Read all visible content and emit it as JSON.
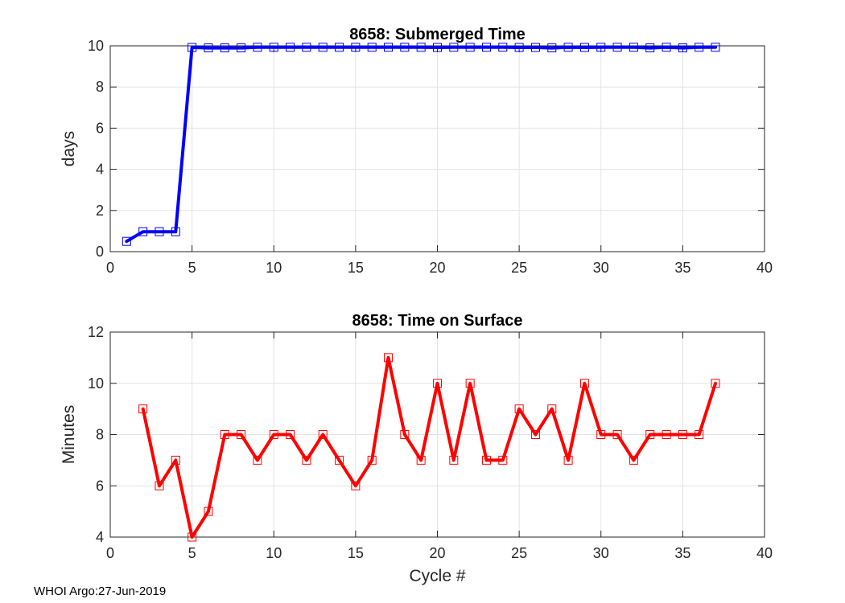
{
  "footer": "WHOI Argo:27-Jun-2019",
  "chart_data": [
    {
      "type": "line",
      "title": "8658: Submerged Time",
      "xlabel": "",
      "ylabel": "days",
      "xlim": [
        0,
        40
      ],
      "ylim": [
        0,
        10
      ],
      "xticks": [
        0,
        5,
        10,
        15,
        20,
        25,
        30,
        35,
        40
      ],
      "yticks": [
        0,
        2,
        4,
        6,
        8,
        10
      ],
      "grid": true,
      "line_color": "#0000ff",
      "marker": "square",
      "x": [
        1,
        2,
        3,
        4,
        5,
        6,
        7,
        8,
        9,
        10,
        11,
        12,
        13,
        14,
        15,
        16,
        17,
        18,
        19,
        20,
        21,
        22,
        23,
        24,
        25,
        26,
        27,
        28,
        29,
        30,
        31,
        32,
        33,
        34,
        35,
        36,
        37
      ],
      "y": [
        0.5,
        0.97,
        0.97,
        0.97,
        9.92,
        9.9,
        9.9,
        9.9,
        9.93,
        9.93,
        9.93,
        9.93,
        9.93,
        9.93,
        9.93,
        9.93,
        9.93,
        9.93,
        9.93,
        9.92,
        9.93,
        9.93,
        9.93,
        9.93,
        9.92,
        9.92,
        9.9,
        9.93,
        9.92,
        9.93,
        9.93,
        9.93,
        9.9,
        9.93,
        9.9,
        9.93,
        9.93
      ]
    },
    {
      "type": "line",
      "title": "8658: Time on Surface",
      "xlabel": "Cycle #",
      "ylabel": "Minutes",
      "xlim": [
        0,
        40
      ],
      "ylim": [
        4,
        12
      ],
      "xticks": [
        0,
        5,
        10,
        15,
        20,
        25,
        30,
        35,
        40
      ],
      "yticks": [
        4,
        6,
        8,
        10,
        12
      ],
      "grid": true,
      "line_color": "#ff0000",
      "marker": "square",
      "x": [
        2,
        3,
        4,
        5,
        6,
        7,
        8,
        9,
        10,
        11,
        12,
        13,
        14,
        15,
        16,
        17,
        18,
        19,
        20,
        21,
        22,
        23,
        24,
        25,
        26,
        27,
        28,
        29,
        30,
        31,
        32,
        33,
        34,
        35,
        36,
        37
      ],
      "y": [
        9,
        6,
        7,
        4,
        5,
        8,
        8,
        7,
        8,
        8,
        7,
        8,
        7,
        6,
        7,
        11,
        8,
        7,
        10,
        7,
        10,
        7,
        7,
        9,
        8,
        9,
        7,
        10,
        8,
        8,
        7,
        8,
        8,
        8,
        8,
        10
      ]
    }
  ]
}
